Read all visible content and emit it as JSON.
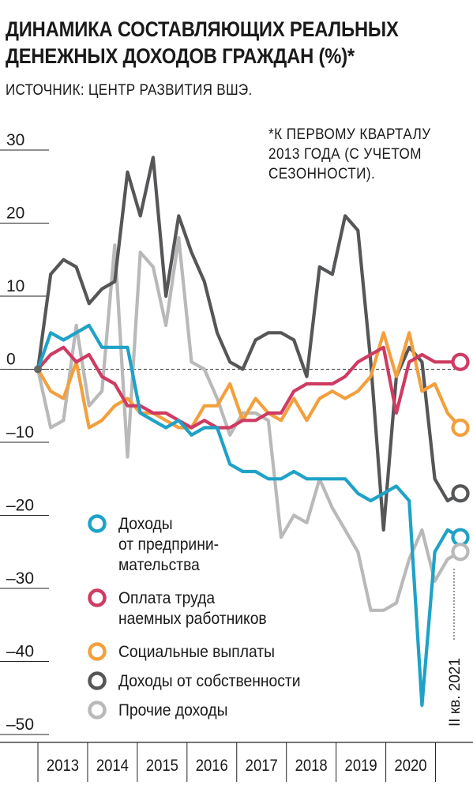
{
  "header": {
    "title": "ДИНАМИКА СОСТАВЛЯЮЩИХ РЕАЛЬНЫХ ДЕНЕЖНЫХ ДОХОДОВ ГРАЖДАН (%)*",
    "source": "ИСТОЧНИК: ЦЕНТР РАЗВИТИЯ ВШЭ.",
    "note": "*К ПЕРВОМУ КВАРТАЛУ 2013 ГОДА (С УЧЕТОМ СЕЗОННОСТИ)."
  },
  "chart_data": {
    "type": "line",
    "x_label_years": [
      "2013",
      "2014",
      "2015",
      "2016",
      "2017",
      "2018",
      "2019",
      "2020"
    ],
    "period_end_label": "II кв. 2021",
    "ylim": [
      -50,
      30
    ],
    "y_ticks": [
      30,
      20,
      10,
      0,
      -10,
      -20,
      -30,
      -40,
      -50
    ],
    "y_tick_labels": [
      "30",
      "20",
      "10",
      "0",
      "–10",
      "–20",
      "–30",
      "–40",
      "–50"
    ],
    "zero_line": "dashed",
    "legend_position": "lower-left",
    "x_index_note": "monthly observations from Jan 2013 to Jun 2021",
    "series": [
      {
        "name": "Доходы от предприни-мательства",
        "legend_lines": [
          "Доходы",
          "от предприни-",
          "мательства"
        ],
        "color": "#1fa2c7",
        "values": [
          0,
          5,
          4,
          5,
          6,
          3,
          3,
          3,
          -6,
          -7,
          -8,
          -7,
          -9,
          -8,
          -8,
          -13,
          -14,
          -14,
          -15,
          -15,
          -14,
          -15,
          -15,
          -15,
          -15,
          -17,
          -18,
          -17,
          -16,
          -18,
          -46,
          -25,
          -22,
          -23
        ]
      },
      {
        "name": "Оплата труда наемных работников",
        "legend_lines": [
          "Оплата труда",
          "наемных работников"
        ],
        "color": "#cf3b62",
        "values": [
          0,
          2,
          3,
          1,
          2,
          -1,
          -2,
          -5,
          -5,
          -6,
          -6,
          -7,
          -8,
          -7,
          -8,
          -8,
          -7,
          -7,
          -6,
          -6,
          -3,
          -2,
          -2,
          -2,
          -1,
          1,
          2,
          3,
          -6,
          1,
          2,
          1,
          1,
          1
        ]
      },
      {
        "name": "Социальные выплаты",
        "legend_lines": [
          "Социальные выплаты"
        ],
        "color": "#f2a03d",
        "values": [
          0,
          -3,
          -4,
          1,
          -8,
          -7,
          -5,
          -4,
          -6,
          -6,
          -7,
          -8,
          -8,
          -5,
          -5,
          -2,
          -7,
          -4,
          -6,
          -7,
          -4,
          -7,
          -4,
          -3,
          -4,
          -3,
          -1,
          5,
          -1,
          5,
          -3,
          -2,
          -6,
          -8
        ]
      },
      {
        "name": "Доходы от собственности",
        "legend_lines": [
          "Доходы от собственности"
        ],
        "color": "#555658",
        "values": [
          0,
          13,
          15,
          14,
          9,
          11,
          12,
          27,
          21,
          29,
          10,
          21,
          16,
          12,
          5,
          1,
          0,
          4,
          5,
          5,
          4,
          -1,
          14,
          13,
          21,
          19,
          1,
          -22,
          -1,
          3,
          1,
          -15,
          -18,
          -17
        ]
      },
      {
        "name": "Прочие доходы",
        "legend_lines": [
          "Прочие доходы"
        ],
        "color": "#b9b9b9",
        "values": [
          0,
          -8,
          -7,
          6,
          -5,
          -3,
          17,
          -12,
          16,
          14,
          6,
          18,
          1,
          0,
          -4,
          -9,
          -6,
          -6,
          -7,
          -23,
          -20,
          -21,
          -15,
          -19,
          -22,
          -25,
          -33,
          -33,
          -32,
          -26,
          -22,
          -29,
          -26,
          -25
        ]
      }
    ]
  }
}
